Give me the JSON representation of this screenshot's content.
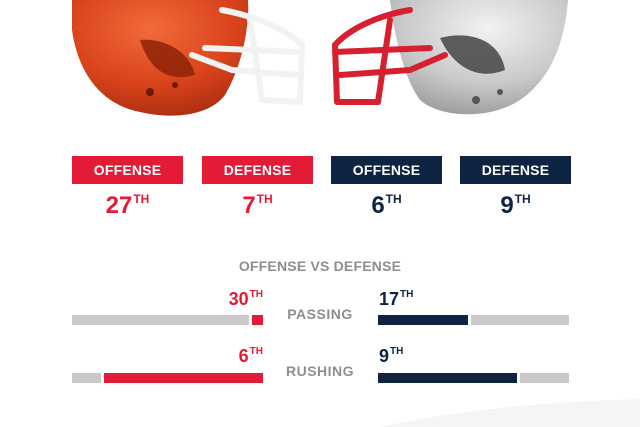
{
  "teams": {
    "left": {
      "color": "#e31b37",
      "offense": {
        "label": "OFFENSE",
        "rank": "27",
        "suffix": "TH"
      },
      "defense": {
        "label": "DEFENSE",
        "rank": "7",
        "suffix": "TH"
      }
    },
    "right": {
      "color": "#0f2442",
      "offense": {
        "label": "OFFENSE",
        "rank": "6",
        "suffix": "TH"
      },
      "defense": {
        "label": "DEFENSE",
        "rank": "9",
        "suffix": "TH"
      }
    }
  },
  "matchup": {
    "title": "OFFENSE VS DEFENSE",
    "rows": [
      {
        "label": "PASSING",
        "left": {
          "rank": "30",
          "suffix": "TH",
          "fill": 0.06
        },
        "right": {
          "rank": "17",
          "suffix": "TH",
          "fill": 0.47
        }
      },
      {
        "label": "RUSHING",
        "left": {
          "rank": "6",
          "suffix": "TH",
          "fill": 0.83
        },
        "right": {
          "rank": "9",
          "suffix": "TH",
          "fill": 0.73
        }
      }
    ]
  },
  "icons": {
    "left_helmet": "red-football-helmet-icon",
    "right_helmet": "silver-football-helmet-icon"
  }
}
